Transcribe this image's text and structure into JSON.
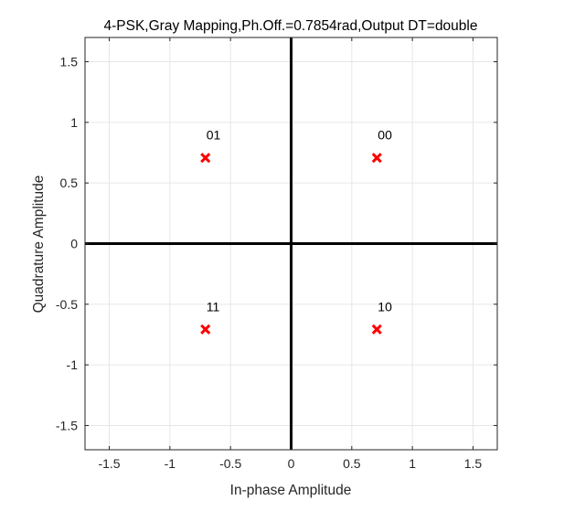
{
  "chart_data": {
    "type": "scatter",
    "title": "4-PSK,Gray Mapping,Ph.Off.=0.7854rad,Output DT=double",
    "xlabel": "In-phase Amplitude",
    "ylabel": "Quadrature Amplitude",
    "xlim": [
      -1.7,
      1.7
    ],
    "ylim": [
      -1.7,
      1.7
    ],
    "xticks": [
      -1.5,
      -1,
      -0.5,
      0,
      0.5,
      1,
      1.5
    ],
    "yticks": [
      -1.5,
      -1,
      -0.5,
      0,
      0.5,
      1,
      1.5
    ],
    "xtick_labels": [
      "-1.5",
      "-1",
      "-0.5",
      "0",
      "0.5",
      "1",
      "1.5"
    ],
    "ytick_labels": [
      "-1.5",
      "-1",
      "-0.5",
      "0",
      "0.5",
      "1",
      "1.5"
    ],
    "grid": true,
    "marker": "x",
    "marker_color": "#ff0000",
    "axis_line_color": "#000000",
    "points": [
      {
        "x": 0.7071,
        "y": 0.7071,
        "label": "00"
      },
      {
        "x": -0.7071,
        "y": 0.7071,
        "label": "01"
      },
      {
        "x": -0.7071,
        "y": -0.7071,
        "label": "11"
      },
      {
        "x": 0.7071,
        "y": -0.7071,
        "label": "10"
      }
    ]
  }
}
